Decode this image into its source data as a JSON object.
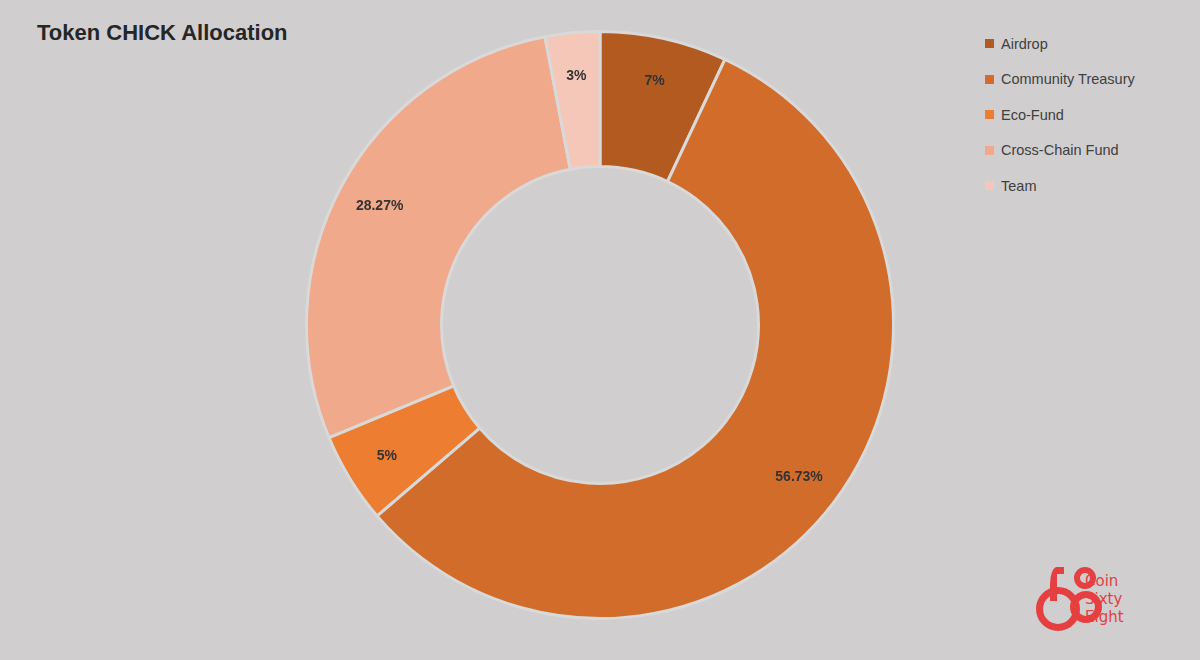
{
  "chart_data": {
    "type": "doughnut",
    "title": "Token CHICK Allocation",
    "categories": [
      "Airdrop",
      "Community Treasury",
      "Eco-Fund",
      "Cross-Chain Fund",
      "Team"
    ],
    "values": [
      7,
      56.73,
      5,
      28.27,
      3
    ],
    "value_labels": [
      "7%",
      "56.73%",
      "5%",
      "28.27%",
      "3%"
    ],
    "colors": [
      "#b35a21",
      "#d26c2a",
      "#ed7d31",
      "#f0a98a",
      "#f4c7b9"
    ],
    "data_labels": true,
    "legend": "top-right",
    "annotations": [
      "Coin Sixty Eight"
    ]
  }
}
